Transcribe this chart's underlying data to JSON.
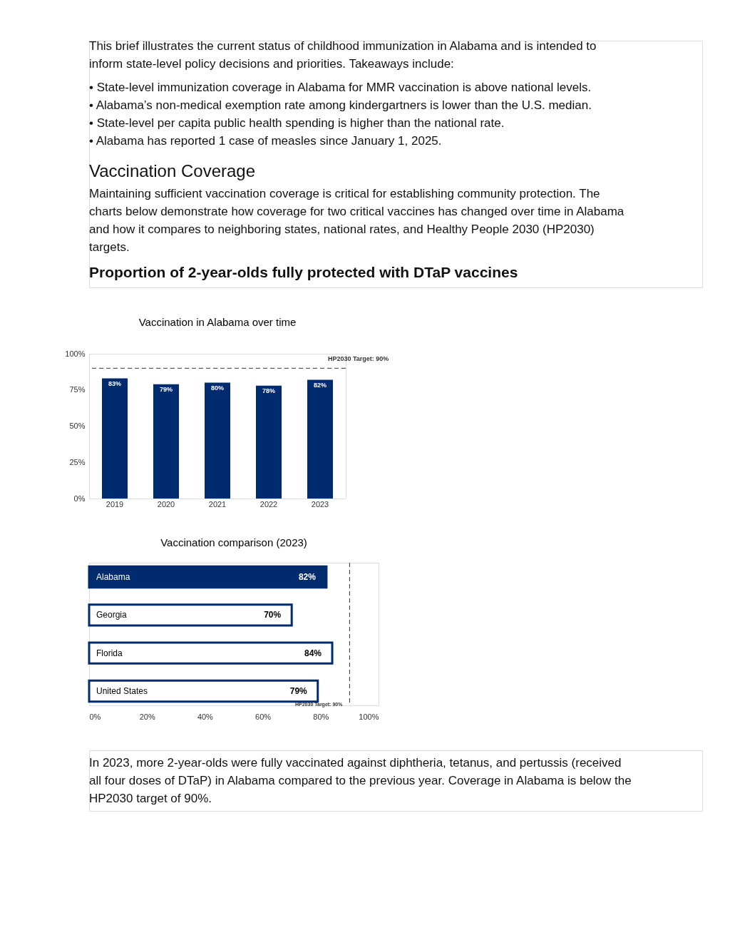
{
  "chart_data": [
    {
      "type": "bar",
      "title": "Vaccination in Alabama over time",
      "annotations": [
        "This brief illustrates the current status of childhood immunization in Alabama and is intended to inform state-level policy decisions and priorities. Takeaways include:",
        "• State-level immunization coverage in Alabama for MMR vaccination is above national levels.",
        "• Alabama’s non-medical exemption rate among kindergartners is lower than the U.S. median.",
        "• State-level per capita public health spending is higher than the national rate.",
        "• Alabama has reported 1 case of measles since January 1, 2025.",
        "Vaccination Coverage",
        "Maintaining sufficient vaccination coverage is critical for establishing community protection. The charts below demonstrate how coverage for two critical vaccines has changed over time in Alabama and how it compares to neighboring states, national rates, and Healthy People 2030 (HP2030) targets.",
        "Proportion of 2-year-olds fully protected with DTaP vaccines"
      ],
      "categories": [
        "2019",
        "2020",
        "2021",
        "2022",
        "2023"
      ],
      "values": [
        83,
        79,
        80,
        78,
        82
      ],
      "value_labels": [
        "83%",
        "79%",
        "80%",
        "78%",
        "82%"
      ],
      "color": "#002b6e",
      "ylim": [
        0,
        100
      ],
      "yticks": [
        {
          "value": 0,
          "label": "0%"
        },
        {
          "value": 25,
          "label": "25%"
        },
        {
          "value": 50,
          "label": "50%"
        },
        {
          "value": 75,
          "label": "75%"
        },
        {
          "value": 100,
          "label": "100%"
        }
      ],
      "ref_lines": [
        {
          "axis": "y",
          "value": 90,
          "label": "HP2030 Target: 90%",
          "line_style": "dashed",
          "color": "#333333"
        }
      ]
    },
    {
      "type": "bar",
      "orientation": "horizontal",
      "title": "Vaccination comparison (2023)",
      "annotations": [
        "In 2023, more 2-year-olds were fully vaccinated against diphtheria, tetanus, and pertussis (received all four doses of DTaP) in Alabama compared to the previous year. Coverage in Alabama is below the HP2030 target of 90%."
      ],
      "categories": [
        "Alabama",
        "Georgia",
        "Florida",
        "United States"
      ],
      "values": [
        82,
        70,
        84,
        79
      ],
      "value_labels": [
        "82%",
        "70%",
        "84%",
        "79%"
      ],
      "color": "#002b6e",
      "colors": [
        "#002b6e",
        "#ffffff",
        "#ffffff",
        "#ffffff"
      ],
      "xlim": [
        0,
        100
      ],
      "xticks": [
        {
          "value": 0,
          "label": "0%"
        },
        {
          "value": 20,
          "label": "20%"
        },
        {
          "value": 40,
          "label": "40%"
        },
        {
          "value": 60,
          "label": "60%"
        },
        {
          "value": 80,
          "label": "80%"
        },
        {
          "value": 100,
          "label": "100%"
        }
      ],
      "ref_lines": [
        {
          "axis": "x",
          "value": 90,
          "label": "HP2030 Target: 90%",
          "line_style": "dashed",
          "color": "#333333"
        }
      ]
    }
  ]
}
